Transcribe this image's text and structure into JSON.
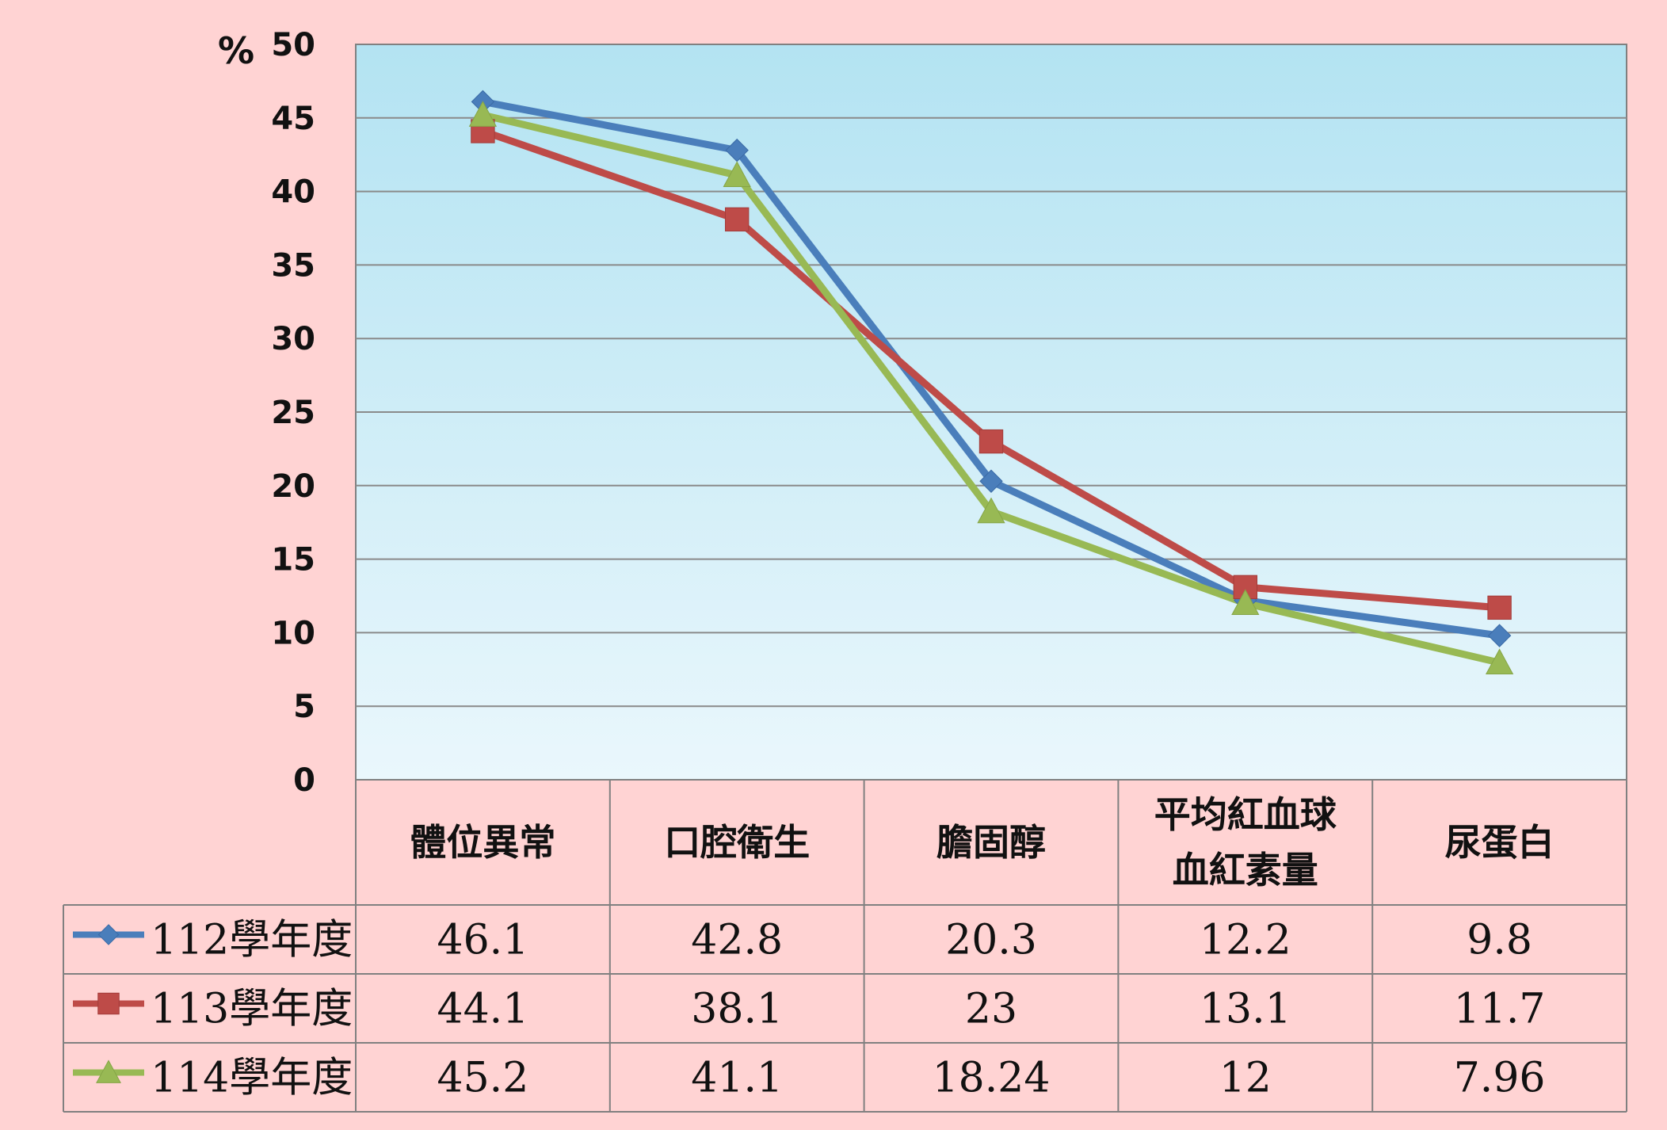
{
  "chart_data": {
    "type": "line",
    "unit_label": "%",
    "categories": [
      [
        "體位異常"
      ],
      [
        "口腔衛生"
      ],
      [
        "膽固醇"
      ],
      [
        "平均紅血球",
        "血紅素量"
      ],
      [
        "尿蛋白"
      ]
    ],
    "series": [
      {
        "name": "112學年度",
        "color": "#4a7ebb",
        "marker": "diamond",
        "values": [
          46.1,
          42.8,
          20.3,
          12.2,
          9.8
        ],
        "labels": [
          "46.1",
          "42.8",
          "20.3",
          "12.2",
          "9.8"
        ]
      },
      {
        "name": "113學年度",
        "color": "#be4b48",
        "marker": "square",
        "values": [
          44.1,
          38.1,
          23,
          13.1,
          11.7
        ],
        "labels": [
          "44.1",
          "38.1",
          "23",
          "13.1",
          "11.7"
        ]
      },
      {
        "name": "114學年度",
        "color": "#98b954",
        "marker": "triangle",
        "values": [
          45.2,
          41.1,
          18.24,
          12,
          7.96
        ],
        "labels": [
          "45.2",
          "41.1",
          "18.24",
          "12",
          "7.96"
        ]
      }
    ],
    "ylim": [
      0,
      50
    ],
    "yticks": [
      0,
      5,
      10,
      15,
      20,
      25,
      30,
      35,
      40,
      45,
      50
    ],
    "grid": true,
    "legend": "data-table"
  }
}
